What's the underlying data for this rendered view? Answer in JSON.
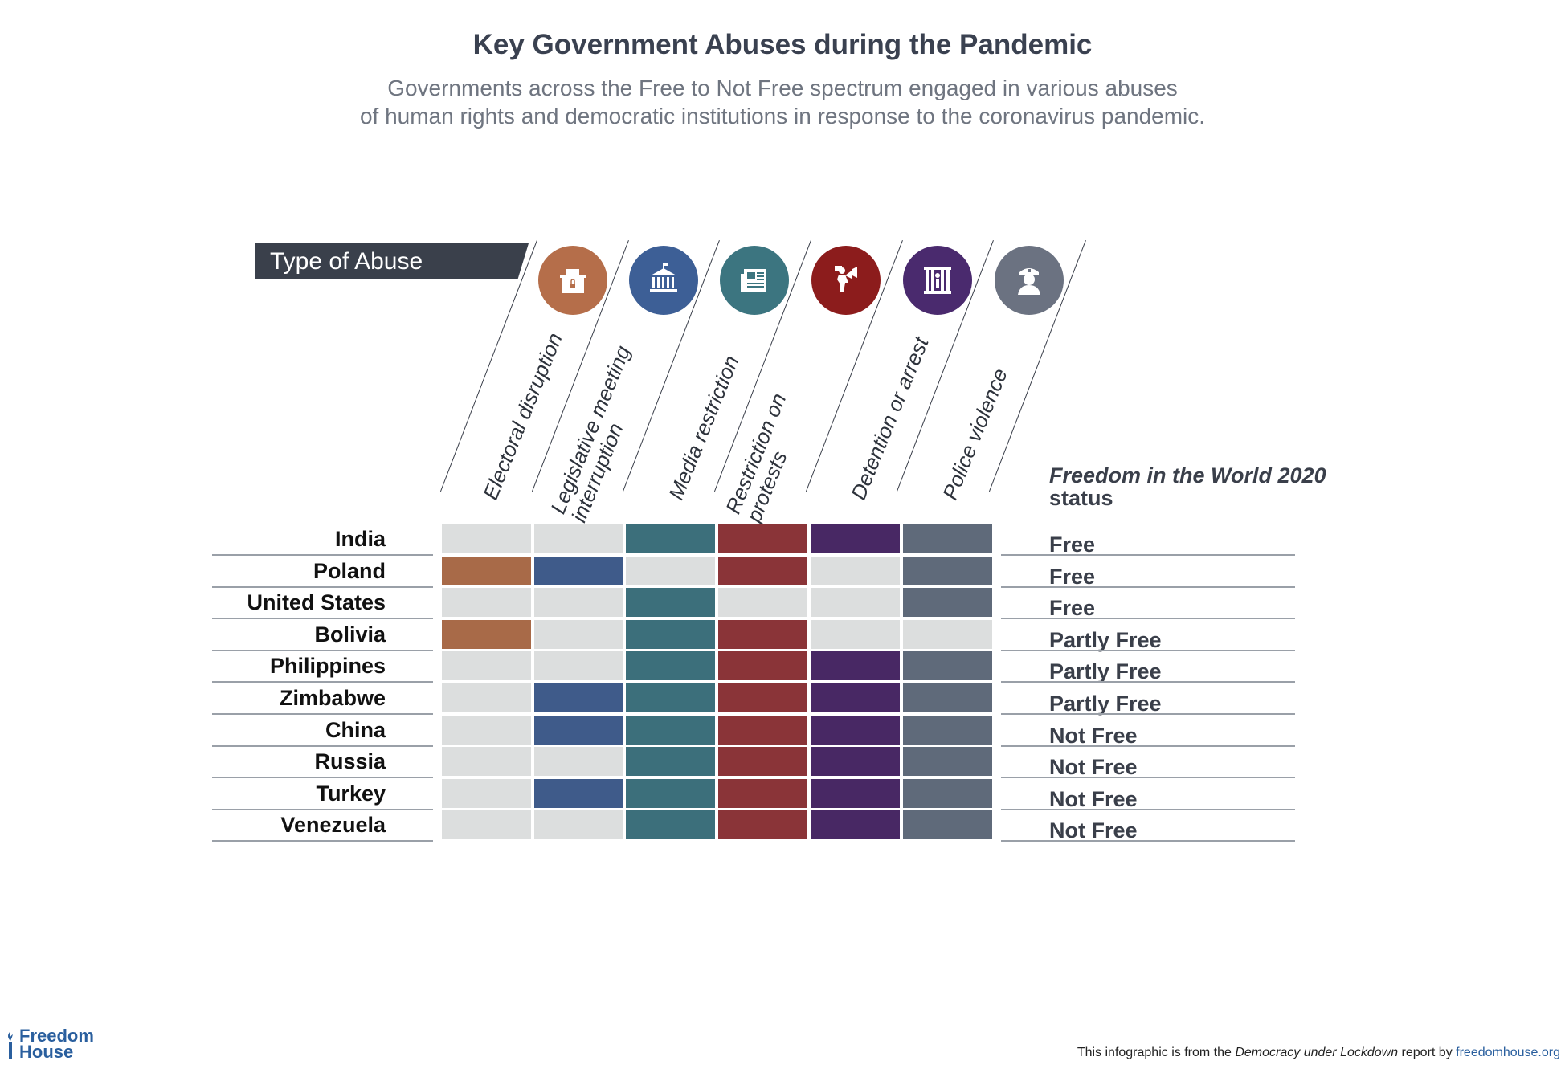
{
  "title": "Key Government Abuses during the Pandemic",
  "subtitle": {
    "line1": "Governments across the Free to Not Free spectrum engaged in various abuses",
    "line2": "of human rights and democratic institutions in response to the coronavirus pandemic."
  },
  "type_of_abuse_label": "Type of Abuse",
  "status_header": {
    "line1": "Freedom in the World 2020",
    "line2": "status"
  },
  "colors": {
    "empty": "#dcdede",
    "electoral": "#a86a48",
    "legislative": "#3f5b8a",
    "media": "#3c6f7b",
    "protests": "#8a3438",
    "detention": "#482864",
    "police": "#5f6a7a"
  },
  "icons": [
    {
      "name": "ballot-box-icon",
      "color": "#b56e4a"
    },
    {
      "name": "parliament-building-icon",
      "color": "#3d5f96"
    },
    {
      "name": "newspaper-icon",
      "color": "#3c7580"
    },
    {
      "name": "protester-megaphone-icon",
      "color": "#8c1c1c"
    },
    {
      "name": "jail-bars-icon",
      "color": "#4a2a6e"
    },
    {
      "name": "police-officer-icon",
      "color": "#6b7281"
    }
  ],
  "chart_data": {
    "type": "table",
    "title": "Key Government Abuses during the Pandemic",
    "columns": [
      {
        "key": "electoral",
        "label": [
          "Electoral disruption"
        ]
      },
      {
        "key": "legislative",
        "label": [
          "Legislative meeting",
          "interruption"
        ]
      },
      {
        "key": "media",
        "label": [
          "Media restriction"
        ]
      },
      {
        "key": "protests",
        "label": [
          "Restriction on",
          "protests"
        ]
      },
      {
        "key": "detention",
        "label": [
          "Detention or arrest"
        ]
      },
      {
        "key": "police",
        "label": [
          "Police violence"
        ]
      }
    ],
    "rows": [
      {
        "country": "India",
        "abuses": [
          0,
          0,
          1,
          1,
          1,
          1
        ],
        "status": "Free"
      },
      {
        "country": "Poland",
        "abuses": [
          1,
          1,
          0,
          1,
          0,
          1
        ],
        "status": "Free"
      },
      {
        "country": "United States",
        "abuses": [
          0,
          0,
          1,
          0,
          0,
          1
        ],
        "status": "Free"
      },
      {
        "country": "Bolivia",
        "abuses": [
          1,
          0,
          1,
          1,
          0,
          0
        ],
        "status": "Partly Free"
      },
      {
        "country": "Philippines",
        "abuses": [
          0,
          0,
          1,
          1,
          1,
          1
        ],
        "status": "Partly Free"
      },
      {
        "country": "Zimbabwe",
        "abuses": [
          0,
          1,
          1,
          1,
          1,
          1
        ],
        "status": "Partly Free"
      },
      {
        "country": "China",
        "abuses": [
          0,
          1,
          1,
          1,
          1,
          1
        ],
        "status": "Not Free"
      },
      {
        "country": "Russia",
        "abuses": [
          0,
          0,
          1,
          1,
          1,
          1
        ],
        "status": "Not Free"
      },
      {
        "country": "Turkey",
        "abuses": [
          0,
          1,
          1,
          1,
          1,
          1
        ],
        "status": "Not Free"
      },
      {
        "country": "Venezuela",
        "abuses": [
          0,
          0,
          1,
          1,
          1,
          1
        ],
        "status": "Not Free"
      }
    ]
  },
  "footer": {
    "logo_line1": "Freedom",
    "logo_line2": "House",
    "text_before": "This infographic is from the ",
    "text_italic": "Democracy under Lockdown",
    "text_after": " report by ",
    "link": "freedomhouse.org"
  }
}
